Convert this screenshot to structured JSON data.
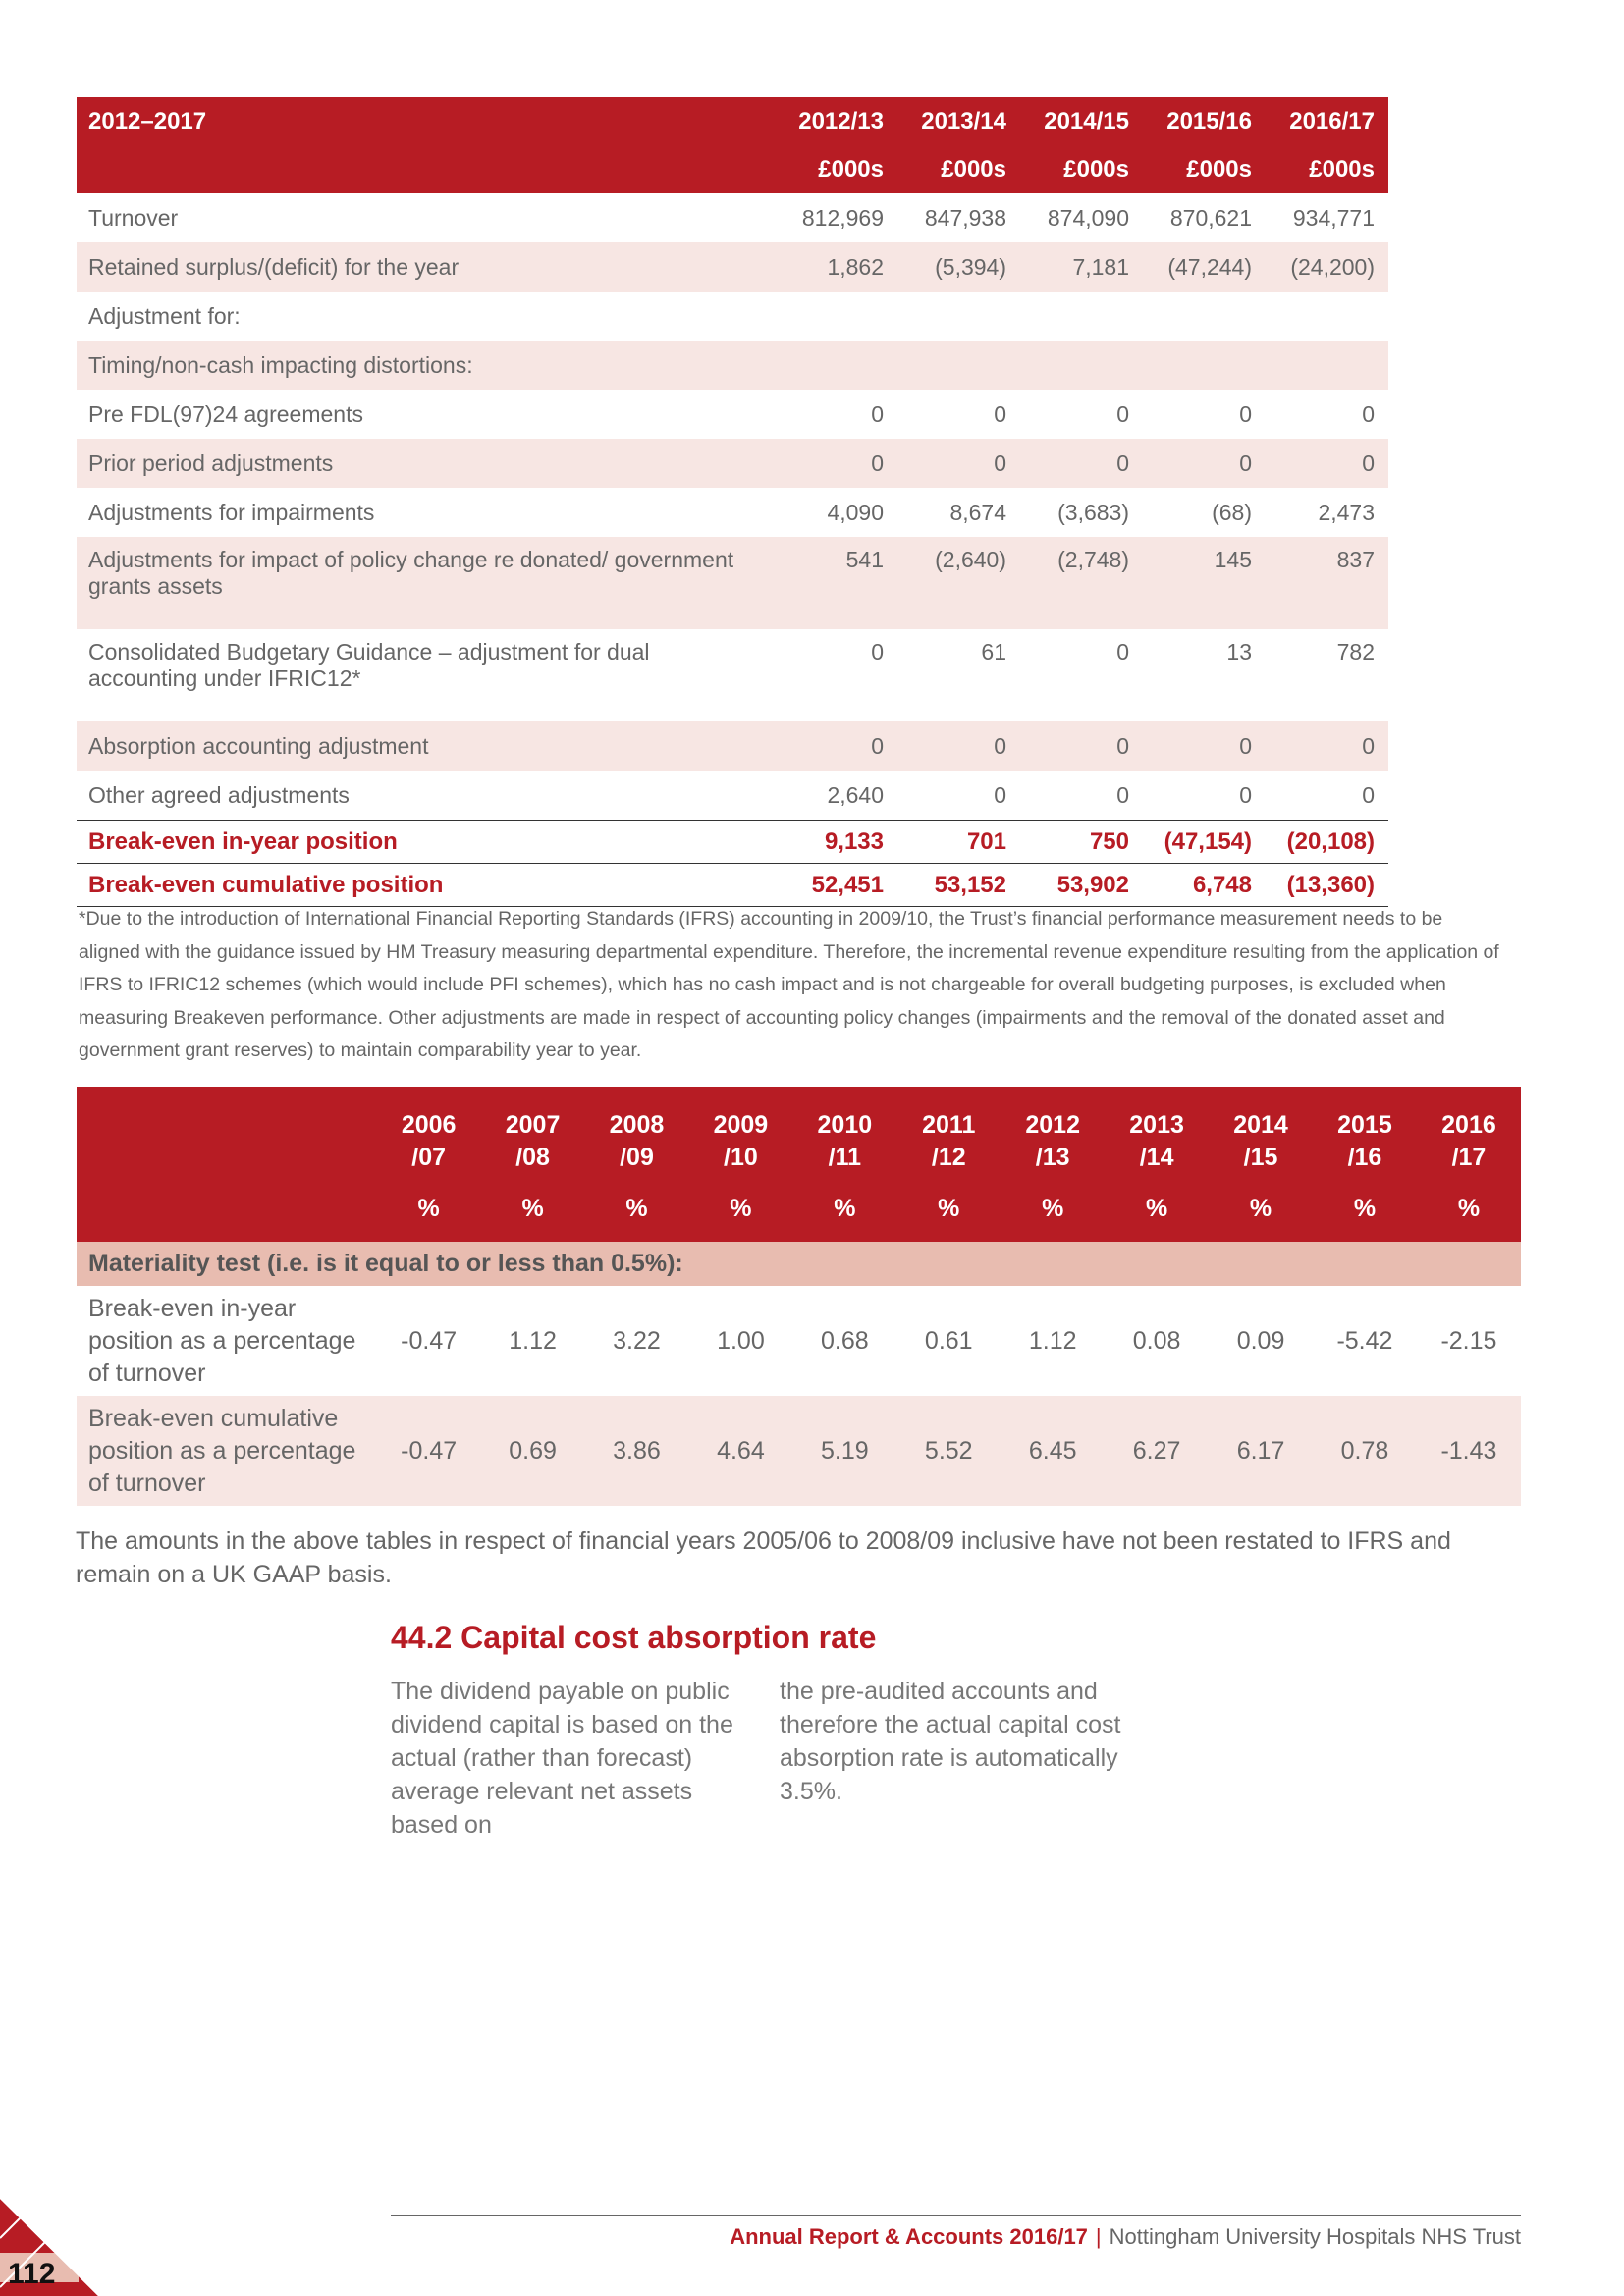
{
  "table1": {
    "header": {
      "title": "2012–2017",
      "years": [
        "2012/13",
        "2013/14",
        "2014/15",
        "2015/16",
        "2016/17"
      ],
      "unit": "£000s"
    },
    "rows": [
      {
        "label": "Turnover",
        "values": [
          "812,969",
          "847,938",
          "874,090",
          "870,621",
          "934,771"
        ]
      },
      {
        "label": "Retained surplus/(deficit) for the year",
        "values": [
          "1,862",
          "(5,394)",
          "7,181",
          "(47,244)",
          "(24,200)"
        ]
      },
      {
        "label": "Adjustment for:",
        "values": [
          "",
          "",
          "",
          "",
          ""
        ]
      },
      {
        "label": "Timing/non-cash impacting distortions:",
        "values": [
          "",
          "",
          "",
          "",
          ""
        ]
      },
      {
        "label": "Pre FDL(97)24 agreements",
        "values": [
          "0",
          "0",
          "0",
          "0",
          "0"
        ]
      },
      {
        "label": "Prior period adjustments",
        "values": [
          "0",
          "0",
          "0",
          "0",
          "0"
        ]
      },
      {
        "label": "Adjustments for impairments",
        "values": [
          "4,090",
          "8,674",
          "(3,683)",
          "(68)",
          "2,473"
        ]
      },
      {
        "label": "Adjustments for impact of policy change re donated/ government grants assets",
        "values": [
          "541",
          "(2,640)",
          "(2,748)",
          "145",
          "837"
        ]
      },
      {
        "label": "Consolidated Budgetary Guidance – adjustment for dual accounting under IFRIC12*",
        "values": [
          "0",
          "61",
          "0",
          "13",
          "782"
        ]
      },
      {
        "label": "Absorption accounting adjustment",
        "values": [
          "0",
          "0",
          "0",
          "0",
          "0"
        ]
      },
      {
        "label": "Other agreed adjustments",
        "values": [
          "2,640",
          "0",
          "0",
          "0",
          "0"
        ]
      }
    ],
    "totals": [
      {
        "label": "Break-even in-year position",
        "values": [
          "9,133",
          "701",
          "750",
          "(47,154)",
          "(20,108)"
        ]
      },
      {
        "label": "Break-even cumulative position",
        "values": [
          "52,451",
          "53,152",
          "53,902",
          "6,748",
          "(13,360)"
        ]
      }
    ]
  },
  "footnote": "*Due to the introduction of International Financial Reporting Standards (IFRS) accounting in 2009/10, the Trust’s financial performance measurement needs to be aligned with the guidance issued by HM Treasury measuring departmental expenditure.  Therefore, the incremental revenue expenditure resulting from the application of IFRS to IFRIC12 schemes (which would include PFI schemes), which has no cash impact and is not chargeable for overall budgeting purposes, is excluded when measuring Breakeven performance.  Other adjustments are made in respect of accounting policy changes (impairments and the removal of the donated asset and government grant reserves) to maintain comparability year to year.",
  "table2": {
    "years": [
      [
        "2006",
        "/07"
      ],
      [
        "2007",
        "/08"
      ],
      [
        "2008",
        "/09"
      ],
      [
        "2009",
        "/10"
      ],
      [
        "2010",
        "/11"
      ],
      [
        "2011",
        "/12"
      ],
      [
        "2012",
        "/13"
      ],
      [
        "2013",
        "/14"
      ],
      [
        "2014",
        "/15"
      ],
      [
        "2015",
        "/16"
      ],
      [
        "2016",
        "/17"
      ]
    ],
    "unit": "%",
    "materiality": "Materiality test (i.e. is it equal to or less than 0.5%):",
    "rows": [
      {
        "label": "Break-even in-year position as a percentage of turnover",
        "values": [
          "-0.47",
          "1.12",
          "3.22",
          "1.00",
          "0.68",
          "0.61",
          "1.12",
          "0.08",
          "0.09",
          "-5.42",
          "-2.15"
        ]
      },
      {
        "label": "Break-even cumulative position as a percentage of turnover",
        "values": [
          "-0.47",
          "0.69",
          "3.86",
          "4.64",
          "5.19",
          "5.52",
          "6.45",
          "6.27",
          "6.17",
          "0.78",
          "-1.43"
        ]
      }
    ]
  },
  "note": "The amounts in the above tables in respect of financial years 2005/06 to 2008/09 inclusive have not been restated to IFRS and remain on a UK GAAP basis.",
  "section": {
    "heading": "44.2 Capital cost absorption rate",
    "col1": "The dividend payable on public dividend capital is based on the actual (rather than forecast) average relevant net assets based on",
    "col2": "the pre-audited accounts and therefore the actual capital cost absorption rate is automatically 3.5%."
  },
  "footer": {
    "report": "Annual Report & Accounts 2016/17",
    "separator": "|",
    "org": "Nottingham University Hospitals NHS Trust",
    "page": "112"
  },
  "colors": {
    "brand_red": "#b71c24",
    "row_alt": "#f7e6e3",
    "materiality_bg": "#e8bcb0"
  }
}
